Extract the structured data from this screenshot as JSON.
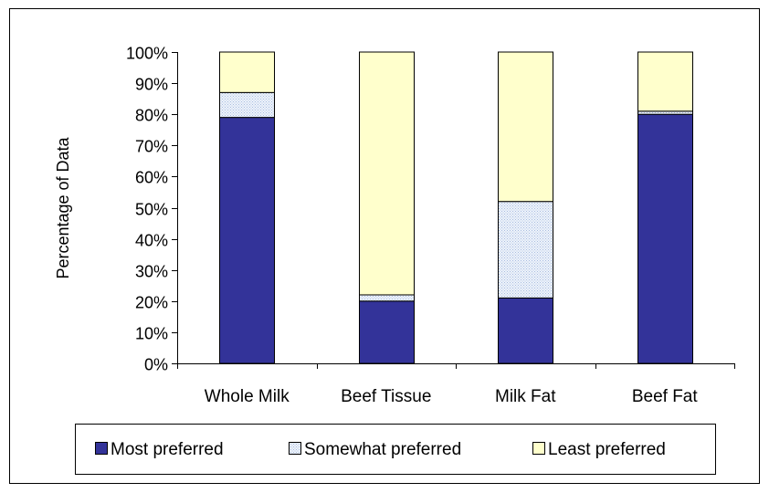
{
  "chart_data": {
    "type": "bar",
    "stacked": true,
    "percent_stacked": true,
    "title": "",
    "xlabel": "",
    "ylabel": "Percentage of Data",
    "ylim": [
      0,
      100
    ],
    "y_ticks": [
      "0%",
      "10%",
      "20%",
      "30%",
      "40%",
      "50%",
      "60%",
      "70%",
      "80%",
      "90%",
      "100%"
    ],
    "grid": false,
    "legend_position": "bottom",
    "categories": [
      "Whole Milk",
      "Beef Tissue",
      "Milk Fat",
      "Beef Fat"
    ],
    "series": [
      {
        "name": "Most preferred",
        "values": [
          79,
          20,
          21,
          80
        ],
        "color": "#333399"
      },
      {
        "name": "Somewhat preferred",
        "values": [
          8,
          2,
          31,
          1
        ],
        "color": "#dde7f7"
      },
      {
        "name": "Least preferred",
        "values": [
          13,
          78,
          48,
          19
        ],
        "color": "#ffffcc"
      }
    ]
  }
}
